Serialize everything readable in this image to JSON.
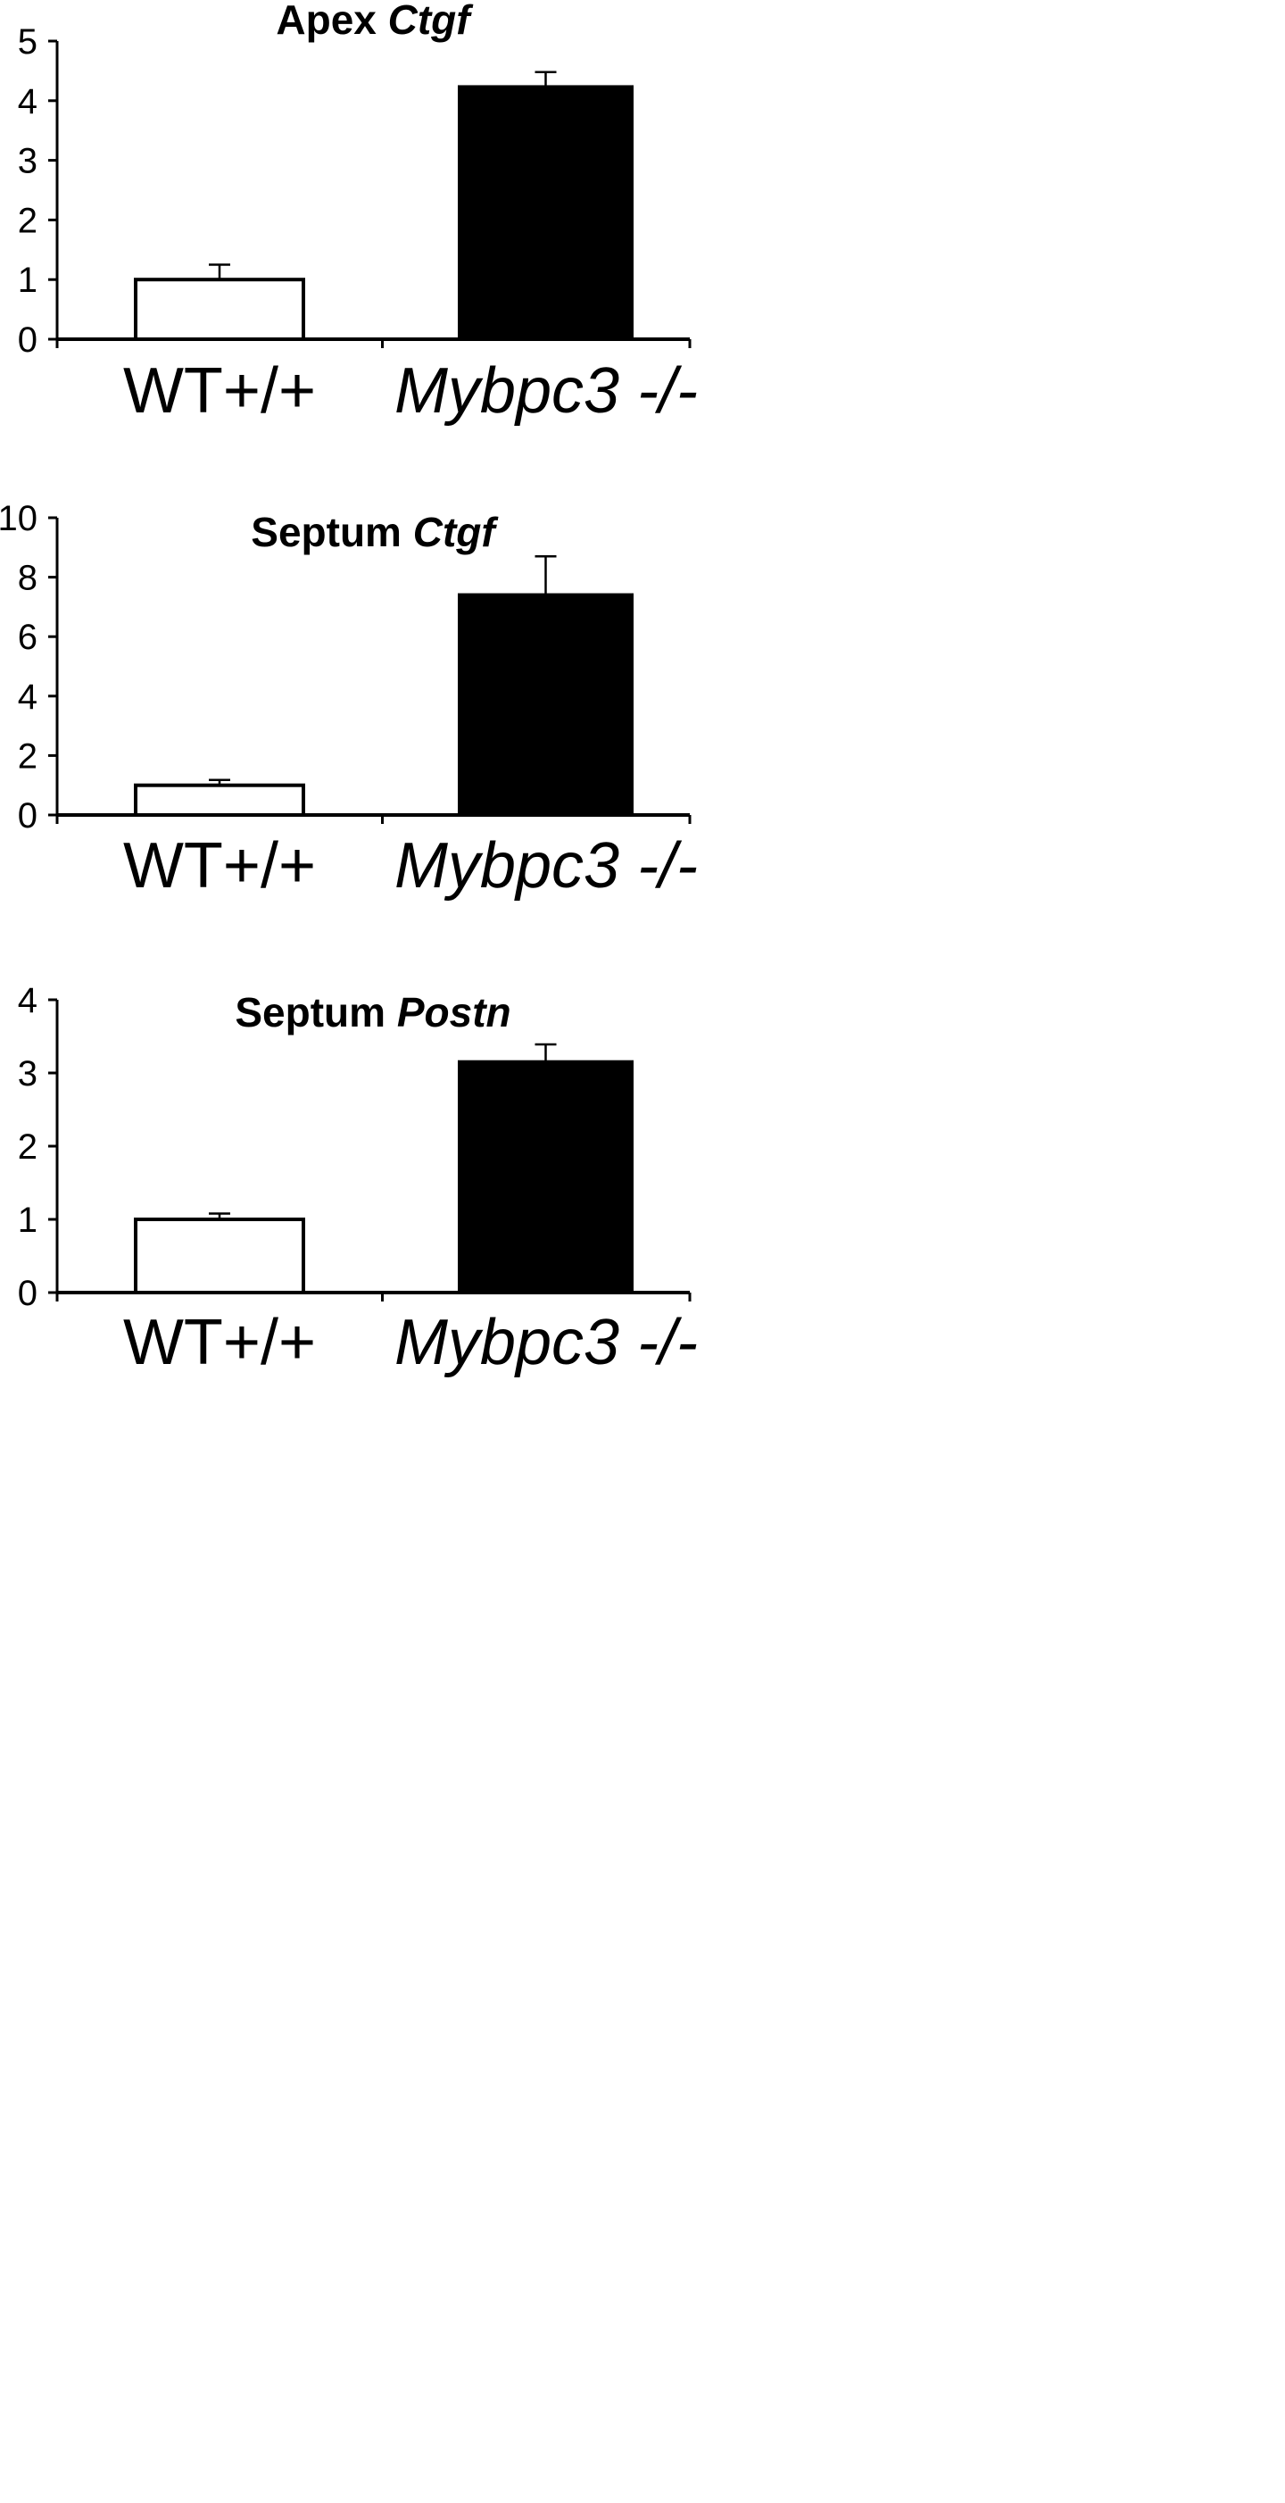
{
  "chart_data": [
    {
      "type": "bar",
      "title": "Apex Ctgf",
      "title_parts": [
        {
          "text": "Apex ",
          "italic": false
        },
        {
          "text": "Ctgf",
          "italic": true
        }
      ],
      "categories": [
        "WT+/+",
        "Mybpc3 -/-"
      ],
      "category_italic": [
        false,
        true
      ],
      "values": [
        1.0,
        4.23
      ],
      "error": [
        0.25,
        0.25
      ],
      "bar_colors": [
        "#ffffff",
        "#000000"
      ],
      "ylim": [
        0,
        5
      ],
      "yticks": [
        0,
        1,
        2,
        3,
        4,
        5
      ],
      "grid": false,
      "xlabel": "",
      "ylabel": ""
    },
    {
      "type": "bar",
      "title": "Septum Ctgf",
      "title_parts": [
        {
          "text": "Septum ",
          "italic": false
        },
        {
          "text": "Ctgf",
          "italic": true
        }
      ],
      "categories": [
        "WT+/+",
        "Mybpc3 -/-"
      ],
      "category_italic": [
        false,
        true
      ],
      "values": [
        1.0,
        7.4
      ],
      "error": [
        0.18,
        1.3
      ],
      "bar_colors": [
        "#ffffff",
        "#000000"
      ],
      "ylim": [
        0,
        10
      ],
      "yticks": [
        0,
        2,
        4,
        6,
        8,
        10
      ],
      "grid": false,
      "xlabel": "",
      "ylabel": ""
    },
    {
      "type": "bar",
      "title": "Septum Postn",
      "title_parts": [
        {
          "text": "Septum ",
          "italic": false
        },
        {
          "text": "Postn",
          "italic": true
        }
      ],
      "categories": [
        "WT+/+",
        "Mybpc3 -/-"
      ],
      "category_italic": [
        false,
        true
      ],
      "values": [
        1.0,
        3.15
      ],
      "error": [
        0.08,
        0.24
      ],
      "bar_colors": [
        "#ffffff",
        "#000000"
      ],
      "ylim": [
        0,
        4
      ],
      "yticks": [
        0,
        1,
        2,
        3,
        4
      ],
      "grid": false,
      "xlabel": "",
      "ylabel": ""
    }
  ]
}
